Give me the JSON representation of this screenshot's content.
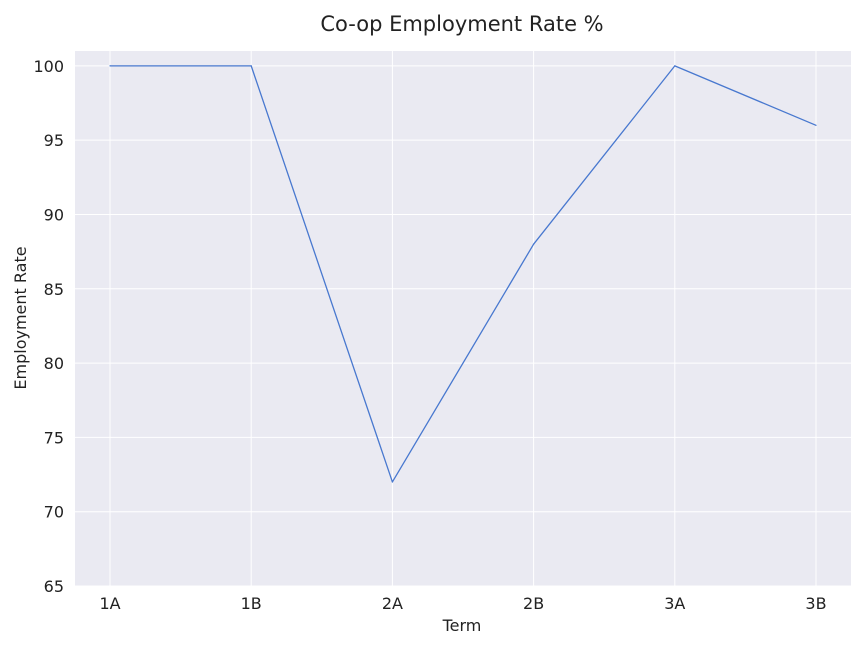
{
  "chart_data": {
    "type": "line",
    "title": "Co-op Employment Rate %",
    "xlabel": "Term",
    "ylabel": "Employment Rate",
    "categories": [
      "1A",
      "1B",
      "2A",
      "2B",
      "3A",
      "3B"
    ],
    "series": [
      {
        "values": [
          100,
          100,
          72,
          88,
          100,
          96
        ]
      }
    ],
    "ylim": [
      65,
      101
    ],
    "yticks": [
      65,
      70,
      75,
      80,
      85,
      90,
      95,
      100
    ],
    "grid": true,
    "colors": {
      "line": "#4878cf",
      "background": "#eaeaf2",
      "grid": "#ffffff"
    }
  }
}
